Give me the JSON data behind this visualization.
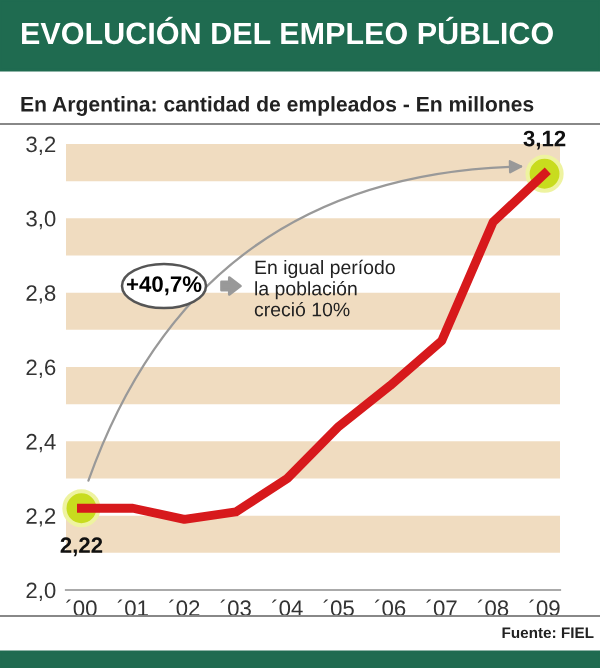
{
  "chart_data": {
    "type": "line",
    "title": "EVOLUCIÓN DEL EMPLEO PÚBLICO",
    "subtitle": "En Argentina: cantidad de empleados - En millones",
    "categories": [
      "´00",
      "´01",
      "´02",
      "´03",
      "´04",
      "´05",
      "´06",
      "´07",
      "´08",
      "´09"
    ],
    "series": [
      {
        "marker": "none",
        "color": "#d7191c",
        "values": [
          2.22,
          2.22,
          2.19,
          2.21,
          2.3,
          2.44,
          2.55,
          2.67,
          2.99,
          3.12
        ],
        "value_labels": [
          "2,22",
          null,
          null,
          null,
          null,
          null,
          null,
          null,
          null,
          "3,12"
        ]
      },
      {
        "type": "scatter",
        "marker": "circle",
        "color": "#c8dc1e",
        "values": [
          2.22,
          null,
          null,
          null,
          null,
          null,
          null,
          null,
          null,
          3.12
        ]
      }
    ],
    "ylim": [
      2.0,
      3.2
    ],
    "yticks": [
      {
        "value": 2.0,
        "label": "2,0"
      },
      {
        "value": 2.2,
        "label": "2,2"
      },
      {
        "value": 2.4,
        "label": "2,4"
      },
      {
        "value": 2.6,
        "label": "2,6"
      },
      {
        "value": 2.8,
        "label": "2,8"
      },
      {
        "value": 3.0,
        "label": "3,0"
      },
      {
        "value": 3.2,
        "label": "3,2"
      }
    ],
    "bands": [
      {
        "axis": "y",
        "from": 2.1,
        "to": 2.2,
        "color": "#f0dcc0"
      },
      {
        "axis": "y",
        "from": 2.3,
        "to": 2.4,
        "color": "#f0dcc0"
      },
      {
        "axis": "y",
        "from": 2.5,
        "to": 2.6,
        "color": "#f0dcc0"
      },
      {
        "axis": "y",
        "from": 2.7,
        "to": 2.8,
        "color": "#f0dcc0"
      },
      {
        "axis": "y",
        "from": 2.9,
        "to": 3.0,
        "color": "#f0dcc0"
      },
      {
        "axis": "y",
        "from": 3.1,
        "to": 3.2,
        "color": "#f0dcc0"
      }
    ],
    "annotations": [
      "+40,7%",
      "En igual período\nla población\ncreció 10%",
      "Fuente: FIEL"
    ],
    "grid": false,
    "line_style": "solid"
  }
}
